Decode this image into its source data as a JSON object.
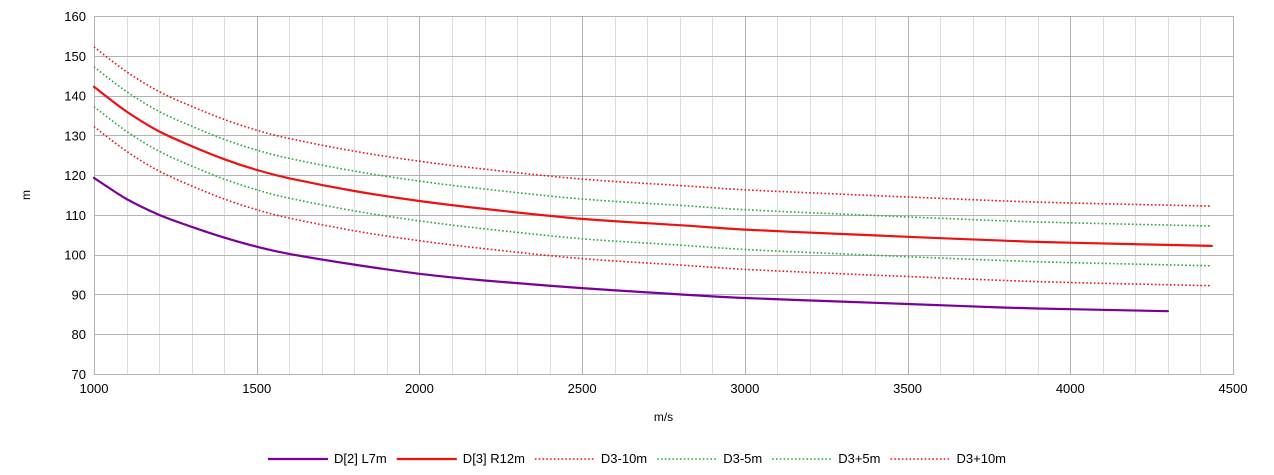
{
  "chart_data": {
    "type": "line",
    "title": "",
    "xlabel": "m/s",
    "ylabel": "m",
    "xlim": [
      1000,
      4500
    ],
    "ylim": [
      70,
      160
    ],
    "x_major_ticks": [
      1000,
      1500,
      2000,
      2500,
      3000,
      3500,
      4000,
      4500
    ],
    "x_minor_step": 100,
    "y_major_ticks": [
      70,
      80,
      90,
      100,
      110,
      120,
      130,
      140,
      150,
      160
    ],
    "grid": true,
    "legend_position": "bottom",
    "series": [
      {
        "name": "D[2] L7m",
        "color": "#7B0099",
        "style": "solid",
        "points": [
          [
            1000,
            119.3
          ],
          [
            1100,
            114.0
          ],
          [
            1200,
            110.0
          ],
          [
            1300,
            107.0
          ],
          [
            1400,
            104.3
          ],
          [
            1500,
            102.0
          ],
          [
            1600,
            100.2
          ],
          [
            1800,
            97.5
          ],
          [
            2000,
            95.2
          ],
          [
            2200,
            93.5
          ],
          [
            2500,
            91.6
          ],
          [
            2800,
            90.0
          ],
          [
            3000,
            89.1
          ],
          [
            3300,
            88.2
          ],
          [
            3500,
            87.6
          ],
          [
            3800,
            86.7
          ],
          [
            4000,
            86.3
          ],
          [
            4300,
            85.8
          ]
        ]
      },
      {
        "name": "D[3] R12m",
        "color": "#EE1111",
        "style": "solid",
        "points": [
          [
            1000,
            142.2
          ],
          [
            1100,
            136.0
          ],
          [
            1200,
            131.0
          ],
          [
            1300,
            127.3
          ],
          [
            1400,
            124.0
          ],
          [
            1500,
            121.3
          ],
          [
            1600,
            119.2
          ],
          [
            1800,
            116.0
          ],
          [
            2000,
            113.5
          ],
          [
            2200,
            111.5
          ],
          [
            2500,
            109.0
          ],
          [
            2800,
            107.4
          ],
          [
            3000,
            106.3
          ],
          [
            3300,
            105.2
          ],
          [
            3500,
            104.5
          ],
          [
            3800,
            103.5
          ],
          [
            4000,
            103.0
          ],
          [
            4435,
            102.2
          ]
        ]
      },
      {
        "name": "D3-10m",
        "color": "#EE1111",
        "style": "dotted",
        "points": [
          [
            1000,
            132.2
          ],
          [
            1100,
            126.0
          ],
          [
            1200,
            121.0
          ],
          [
            1300,
            117.3
          ],
          [
            1400,
            114.0
          ],
          [
            1500,
            111.3
          ],
          [
            1600,
            109.2
          ],
          [
            1800,
            106.0
          ],
          [
            2000,
            103.5
          ],
          [
            2200,
            101.5
          ],
          [
            2500,
            99.0
          ],
          [
            2800,
            97.4
          ],
          [
            3000,
            96.3
          ],
          [
            3300,
            95.2
          ],
          [
            3500,
            94.5
          ],
          [
            3800,
            93.5
          ],
          [
            4000,
            93.0
          ],
          [
            4435,
            92.2
          ]
        ]
      },
      {
        "name": "D3-5m",
        "color": "#22AA33",
        "style": "dotted",
        "points": [
          [
            1000,
            137.2
          ],
          [
            1100,
            131.0
          ],
          [
            1200,
            126.0
          ],
          [
            1300,
            122.3
          ],
          [
            1400,
            119.0
          ],
          [
            1500,
            116.3
          ],
          [
            1600,
            114.2
          ],
          [
            1800,
            111.0
          ],
          [
            2000,
            108.5
          ],
          [
            2200,
            106.5
          ],
          [
            2500,
            104.0
          ],
          [
            2800,
            102.4
          ],
          [
            3000,
            101.3
          ],
          [
            3300,
            100.2
          ],
          [
            3500,
            99.5
          ],
          [
            3800,
            98.5
          ],
          [
            4000,
            98.0
          ],
          [
            4435,
            97.2
          ]
        ]
      },
      {
        "name": "D3+5m",
        "color": "#22AA33",
        "style": "dotted",
        "points": [
          [
            1000,
            147.2
          ],
          [
            1100,
            141.0
          ],
          [
            1200,
            136.0
          ],
          [
            1300,
            132.3
          ],
          [
            1400,
            129.0
          ],
          [
            1500,
            126.3
          ],
          [
            1600,
            124.2
          ],
          [
            1800,
            121.0
          ],
          [
            2000,
            118.5
          ],
          [
            2200,
            116.5
          ],
          [
            2500,
            114.0
          ],
          [
            2800,
            112.4
          ],
          [
            3000,
            111.3
          ],
          [
            3300,
            110.2
          ],
          [
            3500,
            109.5
          ],
          [
            3800,
            108.5
          ],
          [
            4000,
            108.0
          ],
          [
            4435,
            107.2
          ]
        ]
      },
      {
        "name": "D3+10m",
        "color": "#EE1111",
        "style": "dotted",
        "points": [
          [
            1000,
            152.2
          ],
          [
            1100,
            146.0
          ],
          [
            1200,
            141.0
          ],
          [
            1300,
            137.3
          ],
          [
            1400,
            134.0
          ],
          [
            1500,
            131.3
          ],
          [
            1600,
            129.2
          ],
          [
            1800,
            126.0
          ],
          [
            2000,
            123.5
          ],
          [
            2200,
            121.5
          ],
          [
            2500,
            119.0
          ],
          [
            2800,
            117.4
          ],
          [
            3000,
            116.3
          ],
          [
            3300,
            115.2
          ],
          [
            3500,
            114.5
          ],
          [
            3800,
            113.5
          ],
          [
            4000,
            113.0
          ],
          [
            4435,
            112.2
          ]
        ]
      }
    ]
  }
}
